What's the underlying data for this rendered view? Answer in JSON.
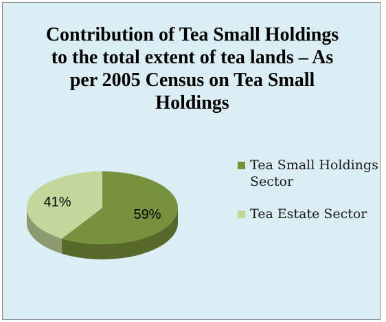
{
  "chart_data": {
    "type": "pie",
    "title": "Contribution of Tea Small Holdings to the total extent of tea lands – As per 2005 Census on Tea Small Holdings",
    "slices": [
      {
        "label": "Tea Small Holdings Sector",
        "value": 59,
        "value_label": "59%",
        "color": "#77923c"
      },
      {
        "label": "Tea Estate Sector",
        "value": 41,
        "value_label": "41%",
        "color": "#c3d69b"
      }
    ],
    "legend_position": "right",
    "style": "3d"
  }
}
